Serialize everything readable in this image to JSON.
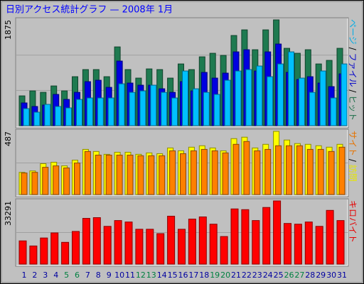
{
  "title": "日別アクセス統計グラフ — 2008年 1月",
  "chart_data": [
    {
      "type": "bar",
      "legend_separator": " / ",
      "ylim": [
        0,
        1875
      ],
      "yticks": [
        1875
      ],
      "grid_divisions": 3,
      "series": [
        {
          "name": "ページ",
          "color": "#00c0ff",
          "values": [
            302,
            239,
            377,
            340,
            315,
            465,
            491,
            491,
            491,
            742,
            591,
            616,
            717,
            591,
            491,
            969,
            654,
            591,
            554,
            805,
            969,
            994,
            1057,
            868,
            1094,
            1308,
            843,
            591,
            969,
            491,
            1094
          ]
        },
        {
          "name": "ファイル",
          "color": "#0000e0",
          "values": [
            403,
            340,
            365,
            554,
            465,
            591,
            780,
            805,
            679,
            1145,
            755,
            717,
            717,
            654,
            591,
            780,
            616,
            944,
            843,
            931,
            1308,
            1346,
            969,
            1308,
            1447,
            944,
            818,
            868,
            755,
            692,
            918
          ]
        },
        {
          "name": "ヒット",
          "color": "#1e7a50",
          "values": [
            528,
            616,
            591,
            704,
            616,
            868,
            994,
            994,
            868,
            1396,
            994,
            843,
            1006,
            994,
            843,
            1094,
            994,
            1220,
            1283,
            1245,
            1598,
            1698,
            1346,
            1698,
            1875,
            1371,
            1283,
            1346,
            1094,
            1157,
            1371
          ]
        }
      ]
    },
    {
      "type": "bar",
      "legend_separator": " / ",
      "ylim": [
        0,
        487
      ],
      "yticks": [
        487
      ],
      "grid_divisions": 2,
      "series": [
        {
          "name": "サイト",
          "color": "#ff8000",
          "values": [
            166,
            171,
            210,
            221,
            205,
            243,
            332,
            304,
            304,
            304,
            304,
            299,
            299,
            299,
            337,
            315,
            337,
            348,
            337,
            321,
            387,
            409,
            337,
            348,
            376,
            376,
            376,
            348,
            348,
            332,
            365
          ]
        },
        {
          "name": "訪問",
          "color": "#ffff00",
          "values": [
            171,
            182,
            238,
            249,
            221,
            265,
            348,
            332,
            310,
            326,
            326,
            310,
            321,
            315,
            359,
            337,
            365,
            376,
            359,
            337,
            431,
            442,
            359,
            387,
            487,
            420,
            393,
            387,
            376,
            365,
            387
          ]
        }
      ]
    },
    {
      "type": "bar",
      "ylim": [
        0,
        33291
      ],
      "yticks": [
        33291
      ],
      "grid_divisions": 2,
      "categories": [
        "1",
        "2",
        "3",
        "4",
        "5",
        "6",
        "7",
        "8",
        "9",
        "10",
        "11",
        "12",
        "13",
        "14",
        "15",
        "16",
        "17",
        "18",
        "19",
        "20",
        "21",
        "22",
        "23",
        "24",
        "25",
        "26",
        "27",
        "28",
        "29",
        "30",
        "31"
      ],
      "category_colors": [
        "#0000a0",
        "#0000a0",
        "#0000a0",
        "#0000a0",
        "#008040",
        "#008040",
        "#0000a0",
        "#0000a0",
        "#0000a0",
        "#0000a0",
        "#0000a0",
        "#008040",
        "#008040",
        "#0000a0",
        "#0000a0",
        "#0000a0",
        "#0000a0",
        "#0000a0",
        "#008040",
        "#008040",
        "#0000a0",
        "#0000a0",
        "#0000a0",
        "#0000a0",
        "#0000a0",
        "#008040",
        "#008040",
        "#0000a0",
        "#0000a0",
        "#0000a0",
        "#0000a0"
      ],
      "series": [
        {
          "name": "キロバイト",
          "color": "#ff0000",
          "values": [
            12246,
            9568,
            13777,
            16456,
            11481,
            17222,
            24110,
            24493,
            19900,
            22962,
            22197,
            18370,
            18370,
            16073,
            25258,
            18370,
            23727,
            24876,
            21049,
            14543,
            29085,
            28703,
            22962,
            29851,
            33291,
            21431,
            21049,
            22197,
            19900,
            28320,
            22962
          ]
        }
      ]
    }
  ]
}
